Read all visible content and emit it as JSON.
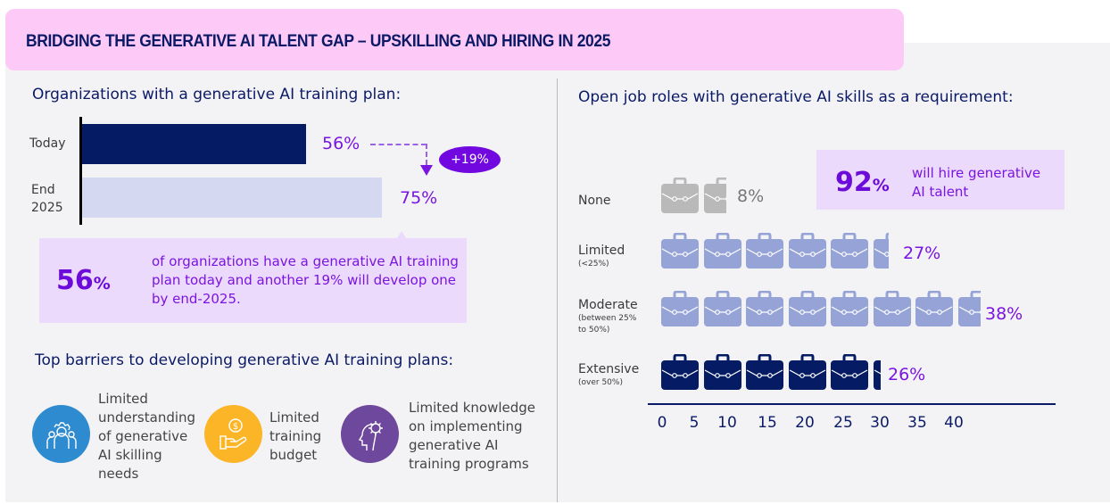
{
  "title": "BRIDGING THE GENERATIVE AI TALENT GAP – UPSKILLING AND HIRING IN 2025",
  "left": {
    "heading": "Organizations with a generative AI training plan:",
    "bars": [
      {
        "label": "Today",
        "value": 56,
        "value_label": "56%",
        "color": "#051b63"
      },
      {
        "label_line1": "End",
        "label_line2": "2025",
        "value": 75,
        "value_label": "75%",
        "color": "#d4d9f1"
      }
    ],
    "delta_label": "+19%",
    "callout": {
      "big_number": "56",
      "big_unit": "%",
      "text": "of organizations have a generative AI training plan today and another 19% will develop one by end-2025."
    },
    "barriers_heading": "Top barriers to developing generative AI training plans:",
    "barriers": [
      {
        "icon": "people-gear-icon",
        "color": "#2e8bd0",
        "text": "Limited understanding of generative AI skilling needs"
      },
      {
        "icon": "money-hand-icon",
        "color": "#fbb526",
        "text": "Limited training budget"
      },
      {
        "icon": "head-gear-icon",
        "color": "#6e489c",
        "text": "Limited knowledge on implementing generative AI training programs"
      }
    ]
  },
  "right": {
    "heading": "Open job roles with generative AI skills as a requirement:",
    "callout": {
      "big_number": "92",
      "big_unit": "%",
      "text": "will hire generative AI talent"
    },
    "rows": [
      {
        "label": "None",
        "sub": "",
        "value": 8,
        "value_label": "8%",
        "color": "#b9b9b9",
        "label_color": "#777777"
      },
      {
        "label": "Limited",
        "sub": "(<25%)",
        "value": 27,
        "value_label": "27%",
        "color": "#95a3d6",
        "label_color": "#7a14e0"
      },
      {
        "label": "Moderate",
        "sub": "(between 25% to 50%)",
        "value": 38,
        "value_label": "38%",
        "color": "#95a3d6",
        "label_color": "#7a14e0"
      },
      {
        "label": "Extensive",
        "sub": "(over 50%)",
        "value": 26,
        "value_label": "26%",
        "color": "#051b63",
        "label_color": "#7a14e0"
      }
    ],
    "axis_ticks": [
      "0",
      "5",
      "10",
      "15",
      "20",
      "25",
      "30",
      "35",
      "40"
    ]
  },
  "chart_data": [
    {
      "type": "bar",
      "orientation": "horizontal",
      "title": "Organizations with a generative AI training plan:",
      "categories": [
        "Today",
        "End 2025"
      ],
      "values": [
        56,
        75
      ],
      "unit": "%",
      "annotations": [
        "+19%"
      ],
      "xlim": [
        0,
        100
      ],
      "grid": false
    },
    {
      "type": "bar",
      "orientation": "horizontal",
      "style": "pictograph (briefcase icons, 1 icon = 5%)",
      "title": "Open job roles with generative AI skills as a requirement:",
      "categories": [
        "None",
        "Limited (<25%)",
        "Moderate (between 25% to 50%)",
        "Extensive (over 50%)"
      ],
      "values": [
        8,
        27,
        38,
        26
      ],
      "unit": "%",
      "x_ticks": [
        0,
        5,
        10,
        15,
        20,
        25,
        30,
        35,
        40
      ],
      "xlim": [
        0,
        40
      ],
      "annotations": [
        "92% will hire generative AI talent"
      ],
      "grid": false
    }
  ]
}
